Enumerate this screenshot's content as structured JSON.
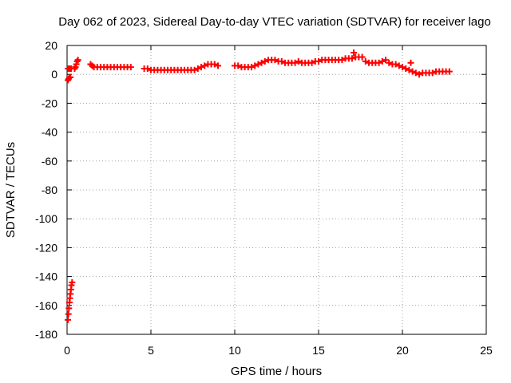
{
  "chart_data": {
    "type": "scatter",
    "title": "Day 062 of 2023, Sidereal Day-to-day VTEC variation (SDTVAR) for receiver lago",
    "xlabel": "GPS time / hours",
    "ylabel": "SDTVAR / TECUs",
    "xlim": [
      0,
      25
    ],
    "ylim": [
      -180,
      20
    ],
    "xticks": [
      0,
      5,
      10,
      15,
      20,
      25
    ],
    "yticks": [
      -180,
      -160,
      -140,
      -120,
      -100,
      -80,
      -60,
      -40,
      -20,
      0,
      20
    ],
    "grid": true,
    "marker": "plus",
    "series": [
      {
        "color": "#ff0000",
        "points": [
          [
            0.05,
            -170
          ],
          [
            0.08,
            -166
          ],
          [
            0.11,
            -162
          ],
          [
            0.14,
            -158
          ],
          [
            0.17,
            -155
          ],
          [
            0.2,
            -152
          ],
          [
            0.23,
            -149
          ],
          [
            0.26,
            -146
          ],
          [
            0.3,
            -144
          ],
          [
            0.05,
            -4
          ],
          [
            0.1,
            -3
          ],
          [
            0.15,
            -2
          ],
          [
            0.2,
            -2
          ],
          [
            0.05,
            4
          ],
          [
            0.1,
            4
          ],
          [
            0.15,
            4
          ],
          [
            0.2,
            4
          ],
          [
            0.25,
            4
          ],
          [
            0.45,
            4
          ],
          [
            0.5,
            5
          ],
          [
            0.55,
            7
          ],
          [
            0.6,
            9
          ],
          [
            0.65,
            10
          ],
          [
            1.4,
            7
          ],
          [
            1.5,
            6
          ],
          [
            1.6,
            5
          ],
          [
            1.8,
            5
          ],
          [
            2.0,
            5
          ],
          [
            2.2,
            5
          ],
          [
            2.4,
            5
          ],
          [
            2.6,
            5
          ],
          [
            2.8,
            5
          ],
          [
            3.0,
            5
          ],
          [
            3.2,
            5
          ],
          [
            3.4,
            5
          ],
          [
            3.6,
            5
          ],
          [
            3.8,
            5
          ],
          [
            4.6,
            4
          ],
          [
            4.8,
            4
          ],
          [
            5.0,
            3
          ],
          [
            5.2,
            3
          ],
          [
            5.4,
            3
          ],
          [
            5.6,
            3
          ],
          [
            5.8,
            3
          ],
          [
            6.0,
            3
          ],
          [
            6.2,
            3
          ],
          [
            6.4,
            3
          ],
          [
            6.6,
            3
          ],
          [
            6.8,
            3
          ],
          [
            7.0,
            3
          ],
          [
            7.2,
            3
          ],
          [
            7.4,
            3
          ],
          [
            7.6,
            3
          ],
          [
            7.8,
            4
          ],
          [
            8.0,
            5
          ],
          [
            8.2,
            6
          ],
          [
            8.4,
            7
          ],
          [
            8.6,
            7
          ],
          [
            8.8,
            7
          ],
          [
            9.0,
            6
          ],
          [
            10.0,
            6
          ],
          [
            10.2,
            6
          ],
          [
            10.4,
            5
          ],
          [
            10.6,
            5
          ],
          [
            10.8,
            5
          ],
          [
            11.0,
            5
          ],
          [
            11.2,
            6
          ],
          [
            11.4,
            7
          ],
          [
            11.6,
            8
          ],
          [
            11.8,
            9
          ],
          [
            12.0,
            10
          ],
          [
            12.2,
            10
          ],
          [
            12.4,
            10
          ],
          [
            12.6,
            9
          ],
          [
            12.8,
            9
          ],
          [
            13.0,
            8
          ],
          [
            13.2,
            8
          ],
          [
            13.4,
            8
          ],
          [
            13.6,
            8
          ],
          [
            13.8,
            9
          ],
          [
            14.0,
            8
          ],
          [
            14.2,
            8
          ],
          [
            14.4,
            8
          ],
          [
            14.6,
            8
          ],
          [
            14.8,
            9
          ],
          [
            15.0,
            9
          ],
          [
            15.2,
            10
          ],
          [
            15.4,
            10
          ],
          [
            15.6,
            10
          ],
          [
            15.8,
            10
          ],
          [
            16.0,
            10
          ],
          [
            16.2,
            10
          ],
          [
            16.4,
            10
          ],
          [
            16.6,
            11
          ],
          [
            16.8,
            11
          ],
          [
            17.0,
            11
          ],
          [
            17.1,
            15
          ],
          [
            17.2,
            12
          ],
          [
            17.4,
            12
          ],
          [
            17.6,
            12
          ],
          [
            17.8,
            9
          ],
          [
            18.0,
            8
          ],
          [
            18.2,
            8
          ],
          [
            18.4,
            8
          ],
          [
            18.6,
            8
          ],
          [
            18.8,
            9
          ],
          [
            19.0,
            10
          ],
          [
            19.2,
            8
          ],
          [
            19.4,
            7
          ],
          [
            19.6,
            7
          ],
          [
            19.8,
            6
          ],
          [
            20.0,
            5
          ],
          [
            20.2,
            4
          ],
          [
            20.4,
            3
          ],
          [
            20.5,
            8
          ],
          [
            20.6,
            2
          ],
          [
            20.8,
            1
          ],
          [
            21.0,
            0
          ],
          [
            21.2,
            1
          ],
          [
            21.4,
            1
          ],
          [
            21.6,
            1
          ],
          [
            21.8,
            1
          ],
          [
            22.0,
            2
          ],
          [
            22.2,
            2
          ],
          [
            22.4,
            2
          ],
          [
            22.6,
            2
          ],
          [
            22.8,
            2
          ]
        ]
      }
    ]
  }
}
